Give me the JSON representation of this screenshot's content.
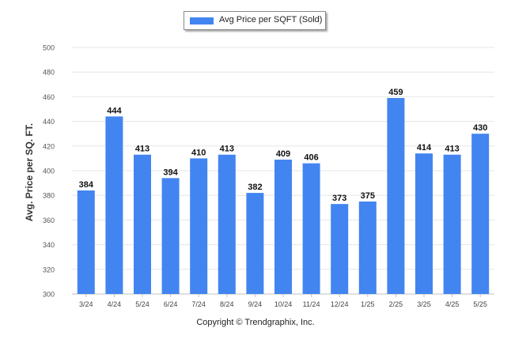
{
  "chart_data": {
    "type": "bar",
    "categories": [
      "3/24",
      "4/24",
      "5/24",
      "6/24",
      "7/24",
      "8/24",
      "9/24",
      "10/24",
      "11/24",
      "12/24",
      "1/25",
      "2/25",
      "3/25",
      "4/25",
      "5/25"
    ],
    "series": [
      {
        "name": "Avg Price per SQFT (Sold)",
        "values": [
          384,
          444,
          413,
          394,
          410,
          413,
          382,
          409,
          406,
          373,
          375,
          459,
          414,
          413,
          430
        ]
      }
    ],
    "title": "",
    "xlabel": "",
    "ylabel": "Avg. Price per SQ. FT.",
    "ylim": [
      300,
      500
    ],
    "yticks": [
      300,
      320,
      340,
      360,
      380,
      400,
      420,
      440,
      460,
      480,
      500
    ],
    "grid": true,
    "legend_position": "top-center",
    "bar_color": "#4285f0"
  },
  "footer": {
    "copyright": "Copyright © Trendgraphix, Inc."
  }
}
